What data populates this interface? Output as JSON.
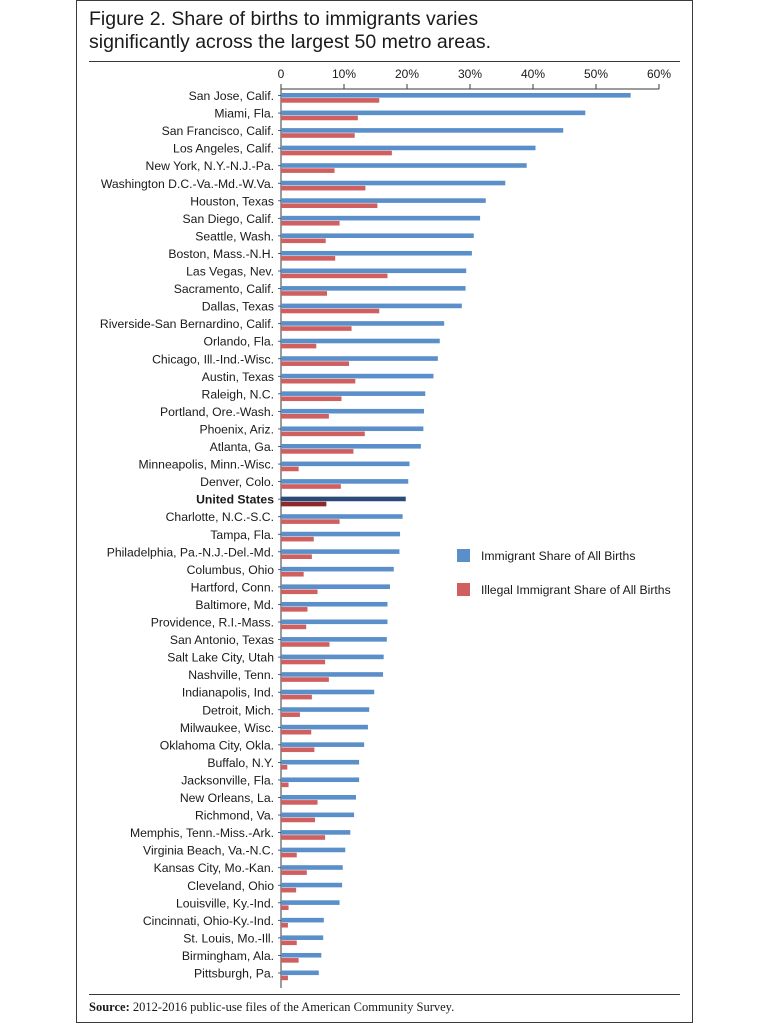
{
  "figure": {
    "title_line1": "Figure 2. Share of births to immigrants varies",
    "title_line2": "significantly across the largest 50 metro areas.",
    "source_label": "Source:",
    "source_text": "2012-2016 public-use files of the American Community Survey."
  },
  "colors": {
    "immigrant": "#5b8fc9",
    "illegal": "#d05f5f",
    "us_immigrant": "#2c4a78",
    "us_illegal": "#8a2a2a",
    "axis": "#3a3a3a",
    "text": "#1a1a1a"
  },
  "chart_data": {
    "type": "bar",
    "orientation": "horizontal",
    "title": "Figure 2. Share of births to immigrants varies significantly across the largest 50 metro areas.",
    "xlim": [
      0,
      60
    ],
    "ticks": [
      "0",
      "10%",
      "20%",
      "30%",
      "40%",
      "50%",
      "60%"
    ],
    "tick_values": [
      0,
      10,
      20,
      30,
      40,
      50,
      60
    ],
    "legend_position": "right",
    "highlight_category": "United States",
    "categories": [
      "San Jose, Calif.",
      "Miami,  Fla.",
      "San Francisco, Calif.",
      "Los Angeles, Calif.",
      "New York, N.Y.-N.J.-Pa.",
      "Washington D.C.-Va.-Md.-W.Va.",
      "Houston, Texas",
      "San Diego, Calif.",
      "Seattle, Wash.",
      "Boston, Mass.-N.H.",
      "Las Vegas, Nev.",
      "Sacramento, Calif.",
      "Dallas, Texas",
      "Riverside-San Bernardino, Calif.",
      "Orlando, Fla.",
      "Chicago, Ill.-Ind.-Wisc.",
      "Austin, Texas",
      "Raleigh, N.C.",
      "Portland, Ore.-Wash.",
      "Phoenix, Ariz.",
      "Atlanta, Ga.",
      "Minneapolis, Minn.-Wisc.",
      "Denver, Colo.",
      "United States",
      "Charlotte, N.C.-S.C.",
      "Tampa, Fla.",
      "Philadelphia, Pa.-N.J.-Del.-Md.",
      "Columbus, Ohio",
      "Hartford, Conn.",
      "Baltimore, Md.",
      "Providence, R.I.-Mass.",
      "San Antonio, Texas",
      "Salt Lake City, Utah",
      "Nashville, Tenn.",
      "Indianapolis, Ind.",
      "Detroit, Mich.",
      "Milwaukee, Wisc.",
      "Oklahoma City, Okla.",
      "Buffalo, N.Y.",
      "Jacksonville, Fla.",
      "New Orleans, La.",
      "Richmond, Va.",
      "Memphis, Tenn.-Miss.-Ark.",
      "Virginia Beach, Va.-N.C.",
      "Kansas City, Mo.-Kan.",
      "Cleveland, Ohio",
      "Louisville, Ky.-Ind.",
      "Cincinnati, Ohio-Ky.-Ind.",
      "St. Louis, Mo.-Ill.",
      "Birmingham, Ala.",
      "Pittsburgh, Pa."
    ],
    "series": [
      {
        "name": "Immigrant Share of All Births",
        "values": [
          55.5,
          48.3,
          44.8,
          40.4,
          39.0,
          35.6,
          32.5,
          31.6,
          30.6,
          30.3,
          29.4,
          29.3,
          28.7,
          25.9,
          25.2,
          24.9,
          24.2,
          22.9,
          22.7,
          22.6,
          22.2,
          20.4,
          20.2,
          19.8,
          19.3,
          18.9,
          18.8,
          17.9,
          17.3,
          16.9,
          16.9,
          16.8,
          16.3,
          16.2,
          14.8,
          14.0,
          13.8,
          13.2,
          12.4,
          12.4,
          11.9,
          11.6,
          11.0,
          10.2,
          9.8,
          9.7,
          9.3,
          6.8,
          6.7,
          6.4,
          6.0
        ]
      },
      {
        "name": "Illegal Immigrant Share of All Births",
        "values": [
          15.6,
          12.2,
          11.7,
          17.6,
          8.5,
          13.4,
          15.3,
          9.3,
          7.1,
          8.6,
          16.9,
          7.3,
          15.6,
          11.2,
          5.6,
          10.8,
          11.8,
          9.6,
          7.6,
          13.3,
          11.5,
          2.8,
          9.5,
          7.2,
          9.3,
          5.2,
          4.9,
          3.6,
          5.8,
          4.2,
          4.0,
          7.7,
          7.0,
          7.6,
          4.9,
          3.0,
          4.8,
          5.3,
          1.0,
          1.2,
          5.8,
          5.4,
          7.0,
          2.5,
          4.1,
          2.4,
          1.2,
          1.1,
          2.5,
          2.8,
          1.1
        ]
      }
    ]
  }
}
